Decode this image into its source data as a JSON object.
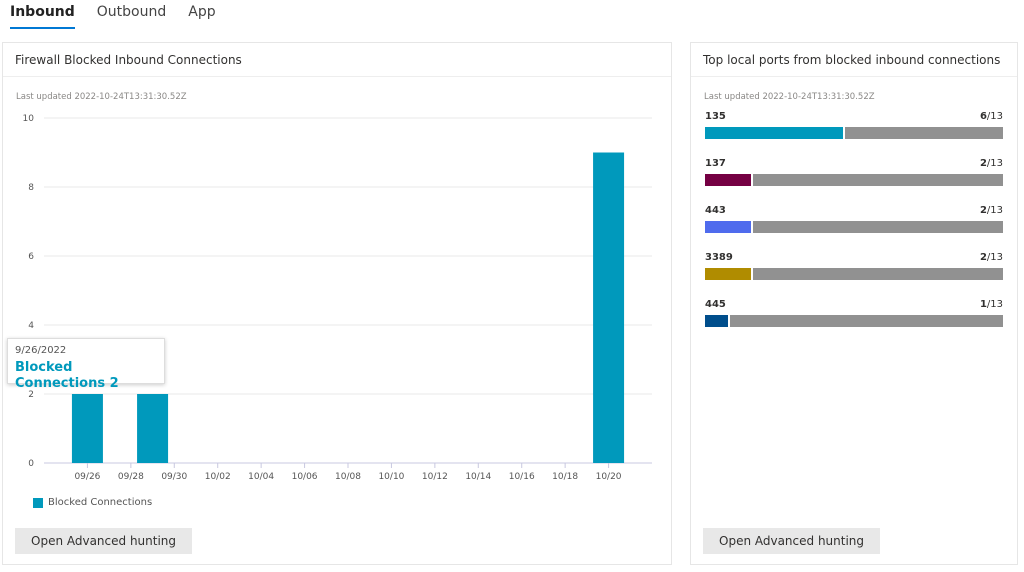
{
  "tabs": [
    {
      "label": "Inbound",
      "active": true
    },
    {
      "label": "Outbound"
    },
    {
      "label": "App"
    }
  ],
  "left": {
    "title": "Firewall Blocked Inbound Connections",
    "updated": "Last updated 2022-10-24T13:31:30.52Z",
    "button": "Open Advanced hunting",
    "tooltip": {
      "date": "9/26/2022",
      "text": "Blocked Connections 2"
    }
  },
  "chart_data": {
    "type": "bar",
    "series": [
      {
        "name": "Blocked Connections",
        "color": "#0099bc",
        "points": [
          {
            "x": "09/26",
            "y": 2
          },
          {
            "x": "09/29",
            "y": 2
          },
          {
            "x": "10/20",
            "y": 9
          }
        ]
      }
    ],
    "xticks": [
      "09/26",
      "09/28",
      "09/30",
      "10/02",
      "10/04",
      "10/06",
      "10/08",
      "10/10",
      "10/12",
      "10/14",
      "10/16",
      "10/18",
      "10/20"
    ],
    "yticks": [
      0,
      2,
      4,
      6,
      8,
      10
    ],
    "ylim": [
      0,
      10
    ],
    "grid": true,
    "legend": "bottom-left"
  },
  "right": {
    "title": "Top local ports from blocked inbound connections",
    "updated": "Last updated 2022-10-24T13:31:30.52Z",
    "button": "Open Advanced hunting",
    "ports": [
      {
        "port": "135",
        "count": "6",
        "total": "/13",
        "color": "#0099bc",
        "fraction": 0.4615
      },
      {
        "port": "137",
        "count": "2",
        "total": "/13",
        "color": "#750043",
        "fraction": 0.1538
      },
      {
        "port": "443",
        "count": "2",
        "total": "/13",
        "color": "#4f6bed",
        "fraction": 0.1538
      },
      {
        "port": "3389",
        "count": "2",
        "total": "/13",
        "color": "#b08c00",
        "fraction": 0.1538
      },
      {
        "port": "445",
        "count": "1",
        "total": "/13",
        "color": "#004e8c",
        "fraction": 0.0769
      }
    ]
  }
}
